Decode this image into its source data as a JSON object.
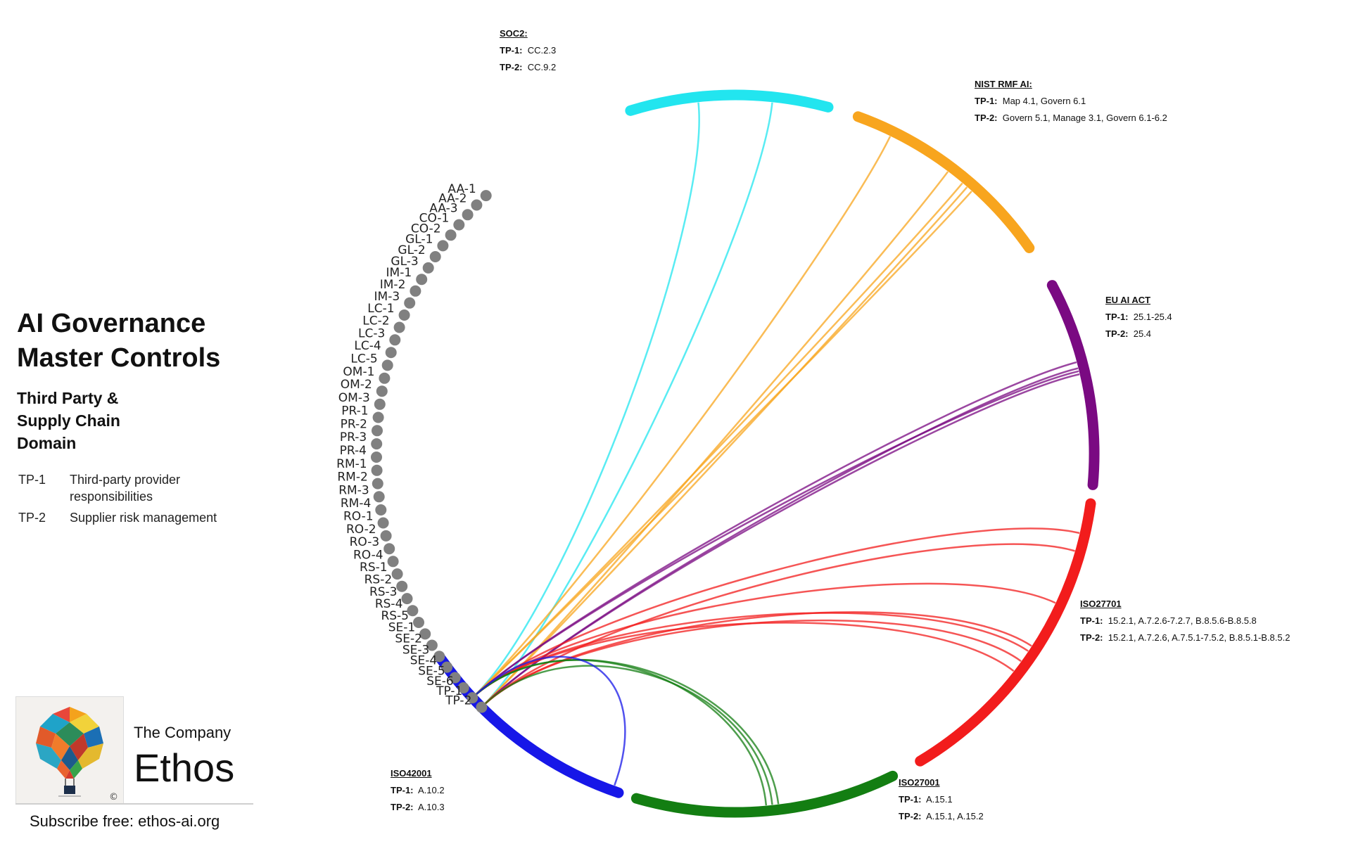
{
  "title_line1": "AI Governance",
  "title_line2": "Master Controls",
  "subtitle_line1": "Third Party &",
  "subtitle_line2": "Supply Chain",
  "subtitle_line3": "Domain",
  "legend": [
    {
      "code": "TP-1",
      "desc": "Third-party provider responsibilities"
    },
    {
      "code": "TP-2",
      "desc": "Supplier risk management"
    }
  ],
  "company_small": "The Company",
  "company_big": "Ethos",
  "copyright": "©",
  "subscribe": "Subscribe free: ethos-ai.org",
  "controls": [
    "AA-1",
    "AA-2",
    "AA-3",
    "CO-1",
    "CO-2",
    "GL-1",
    "GL-2",
    "GL-3",
    "IM-1",
    "IM-2",
    "IM-3",
    "LC-1",
    "LC-2",
    "LC-3",
    "LC-4",
    "LC-5",
    "OM-1",
    "OM-2",
    "OM-3",
    "PR-1",
    "PR-2",
    "PR-3",
    "PR-4",
    "RM-1",
    "RM-2",
    "RM-3",
    "RM-4",
    "RO-1",
    "RO-2",
    "RO-3",
    "RO-4",
    "RS-1",
    "RS-2",
    "RS-3",
    "RS-4",
    "RS-5",
    "SE-1",
    "SE-2",
    "SE-3",
    "SE-4",
    "SE-5",
    "SE-6",
    "TP-1",
    "TP-2"
  ],
  "control_dot_color": "#808080",
  "standards": [
    {
      "name": "SOC2:",
      "tp1": "CC.2.3",
      "tp2": "CC.9.2",
      "color": "#22e5ef"
    },
    {
      "name": "NIST RMF AI:",
      "tp1": "Map 4.1, Govern 6.1",
      "tp2": "Govern 5.1, Manage 3.1, Govern 6.1-6.2",
      "color": "#f8a51e"
    },
    {
      "name": "EU AI ACT",
      "tp1": "25.1-25.4",
      "tp2": "25.4",
      "color": "#7a0a82"
    },
    {
      "name": "ISO27701",
      "tp1": "15.2.1, A.7.2.6-7.2.7, B.8.5.6-B.8.5.8",
      "tp2": "15.2.1, A.7.2.6, A.7.5.1-7.5.2, B.8.5.1-B.8.5.2",
      "color": "#f21c1c"
    },
    {
      "name": "ISO27001",
      "tp1": "A.15.1",
      "tp2": "A.15.1,  A.15.2",
      "color": "#137e12"
    },
    {
      "name": "ISO42001",
      "tp1": "A.10.2",
      "tp2": "A.10.3",
      "color": "#1717e8"
    }
  ],
  "tp1_label": "TP-1:",
  "tp2_label": "TP-2:"
}
